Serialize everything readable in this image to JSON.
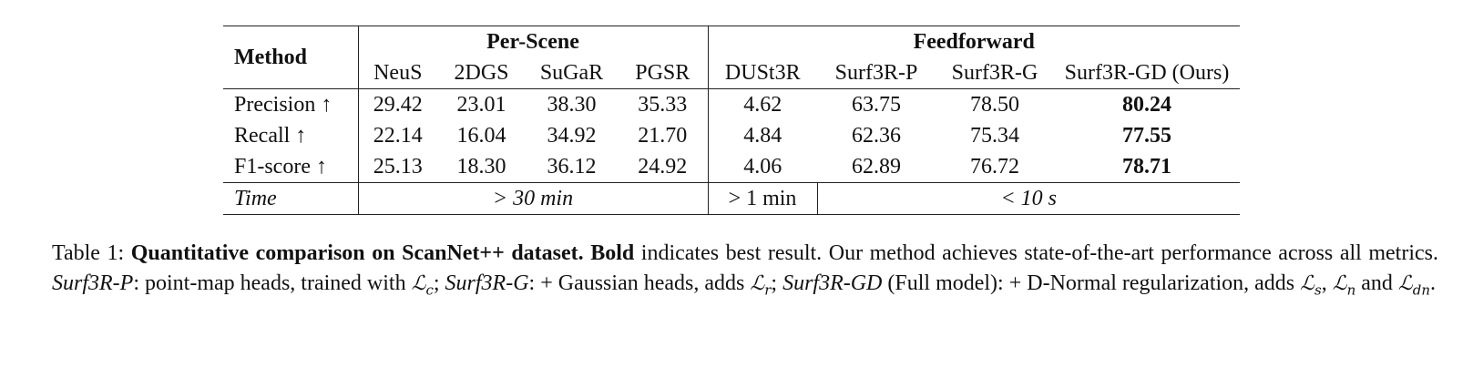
{
  "table": {
    "header": {
      "method": "Method",
      "groups": [
        {
          "label": "Per-Scene",
          "span": 4
        },
        {
          "label": "Feedforward",
          "span": 4
        }
      ],
      "columns": [
        "NeuS",
        "2DGS",
        "SuGaR",
        "PGSR",
        "DUSt3R",
        "Surf3R-P",
        "Surf3R-G",
        "Surf3R-GD (Ours)"
      ]
    },
    "bold_column": 7,
    "rows": [
      {
        "label": "Precision ↑",
        "values": [
          "29.42",
          "23.01",
          "38.30",
          "35.33",
          "4.62",
          "63.75",
          "78.50",
          "80.24"
        ]
      },
      {
        "label": "Recall ↑",
        "values": [
          "22.14",
          "16.04",
          "34.92",
          "21.70",
          "4.84",
          "62.36",
          "75.34",
          "77.55"
        ]
      },
      {
        "label": "F1-score ↑",
        "values": [
          "25.13",
          "18.30",
          "36.12",
          "24.92",
          "4.06",
          "62.89",
          "76.72",
          "78.71"
        ]
      }
    ],
    "time": {
      "label": "Time",
      "cells": [
        {
          "text": "> 30 min",
          "span": 4,
          "italic": true
        },
        {
          "text": "> 1 min",
          "span": 1,
          "italic": false
        },
        {
          "text": "< 10 s",
          "span": 3,
          "italic": true
        }
      ]
    }
  },
  "caption": [
    {
      "text": "Table 1: ",
      "style": "normal"
    },
    {
      "text": "Quantitative comparison on ScanNet++ dataset. Bold",
      "style": "bold"
    },
    {
      "text": " indicates best result. Our method achieves state-of-the-art performance across all metrics. ",
      "style": "normal"
    },
    {
      "text": "Surf3R-P",
      "style": "italic"
    },
    {
      "text": ": point-map heads, trained with ",
      "style": "normal"
    },
    {
      "text": "ℒ",
      "sub": "c",
      "style": "math"
    },
    {
      "text": "; ",
      "style": "normal"
    },
    {
      "text": "Surf3R-G",
      "style": "italic"
    },
    {
      "text": ": + Gaussian heads, adds ",
      "style": "normal"
    },
    {
      "text": "ℒ",
      "sub": "r",
      "style": "math"
    },
    {
      "text": "; ",
      "style": "normal"
    },
    {
      "text": "Surf3R-GD",
      "style": "italic"
    },
    {
      "text": " (Full model): + D-Normal regularization, adds ",
      "style": "normal"
    },
    {
      "text": "ℒ",
      "sub": "s",
      "style": "math"
    },
    {
      "text": ", ",
      "style": "normal"
    },
    {
      "text": "ℒ",
      "sub": "n",
      "style": "math"
    },
    {
      "text": " and ",
      "style": "normal"
    },
    {
      "text": "ℒ",
      "sub": "dn",
      "style": "math"
    },
    {
      "text": ".",
      "style": "normal"
    }
  ]
}
